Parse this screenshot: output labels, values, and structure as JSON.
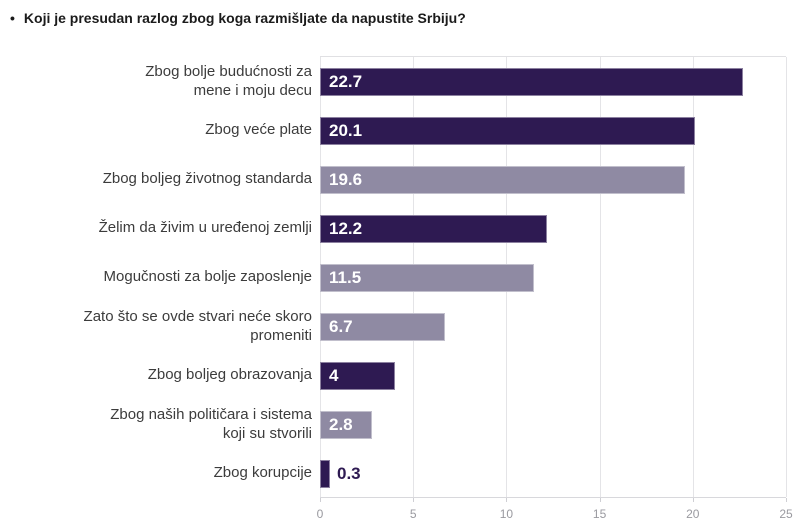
{
  "header": {
    "bullet": "•",
    "title": "Koji je presudan razlog zbog koga razmišljate da napustite Srbiju?"
  },
  "colors": {
    "dark": "#2e1a52",
    "light": "#8f8aa3",
    "grid": "#e4e4e7",
    "axis_line": "#d8d8dc",
    "tick_text": "#9a9aa0",
    "category_text": "#3c3c3c",
    "title_text": "#1b1b1b",
    "value_text_inside": "#ffffff",
    "value_text_outside": "#2e1a52",
    "background": "#ffffff"
  },
  "chart_data": {
    "type": "bar",
    "orientation": "horizontal",
    "title": "Koji je presudan razlog zbog koga razmišljate da napustite Srbiju?",
    "categories": [
      "Zbog bolje budućnosti za\nmene i moju decu",
      "Zbog veće plate",
      "Zbog boljeg životnog standarda",
      "Želim da živim u uređenoj zemlji",
      "Mogučnosti za bolje zaposlenje",
      "Zato što se ovde stvari neće skoro\npromeniti",
      "Zbog boljeg obrazovanja",
      "Zbog naših političara i sistema\nkoji su stvorili",
      "Zbog korupcije"
    ],
    "values": [
      22.7,
      20.1,
      19.6,
      12.2,
      11.5,
      6.7,
      4,
      2.8,
      0.3
    ],
    "value_labels": [
      "22.7",
      "20.1",
      "19.6",
      "12.2",
      "11.5",
      "6.7",
      "4",
      "2.8",
      "0.3"
    ],
    "bar_colors": [
      "dark",
      "dark",
      "light",
      "dark",
      "light",
      "light",
      "dark",
      "light",
      "dark"
    ],
    "value_label_position": [
      "inside",
      "inside",
      "inside",
      "inside",
      "inside",
      "inside",
      "inside",
      "inside",
      "outside"
    ],
    "xlabel": "",
    "ylabel": "",
    "xlim": [
      0,
      25
    ],
    "x_ticks": [
      0,
      5,
      10,
      15,
      20,
      25
    ],
    "grid": true,
    "legend": "none"
  }
}
